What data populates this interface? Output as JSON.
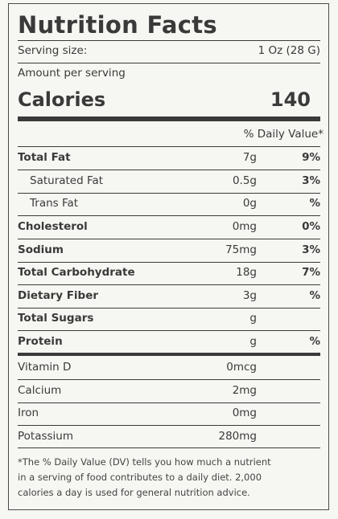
{
  "title": "Nutrition Facts",
  "serving": {
    "label": "Serving size:",
    "value": "1 Oz (28 G)"
  },
  "amount_per_serving": "Amount per serving",
  "calories": {
    "label": "Calories",
    "value": "140"
  },
  "daily_value_header": "% Daily Value*",
  "nutrients": [
    {
      "name": "Total Fat",
      "amount": "7g",
      "dv": "9%"
    },
    {
      "name": "Saturated Fat",
      "amount": "0.5g",
      "dv": "3%"
    },
    {
      "name": "Trans Fat",
      "amount": "0g",
      "dv": "%"
    },
    {
      "name": "Cholesterol",
      "amount": "0mg",
      "dv": "0%"
    },
    {
      "name": "Sodium",
      "amount": "75mg",
      "dv": "3%"
    },
    {
      "name": "Total Carbohydrate",
      "amount": "18g",
      "dv": "7%"
    },
    {
      "name": "Dietary Fiber",
      "amount": "3g",
      "dv": "%"
    },
    {
      "name": "Total Sugars",
      "amount": "g",
      "dv": ""
    },
    {
      "name": "Protein",
      "amount": "g",
      "dv": "%"
    }
  ],
  "vitamins": [
    {
      "name": "Vitamin D",
      "amount": "0mcg"
    },
    {
      "name": "Calcium",
      "amount": "2mg"
    },
    {
      "name": "Iron",
      "amount": "0mg"
    },
    {
      "name": "Potassium",
      "amount": "280mg"
    }
  ],
  "footnote": {
    "line1": "*The % Daily Value (DV) tells you how much a nutrient",
    "line2": "in a serving of food contributes to a daily diet. 2,000",
    "line3": "calories a day is used for general nutrition advice."
  }
}
